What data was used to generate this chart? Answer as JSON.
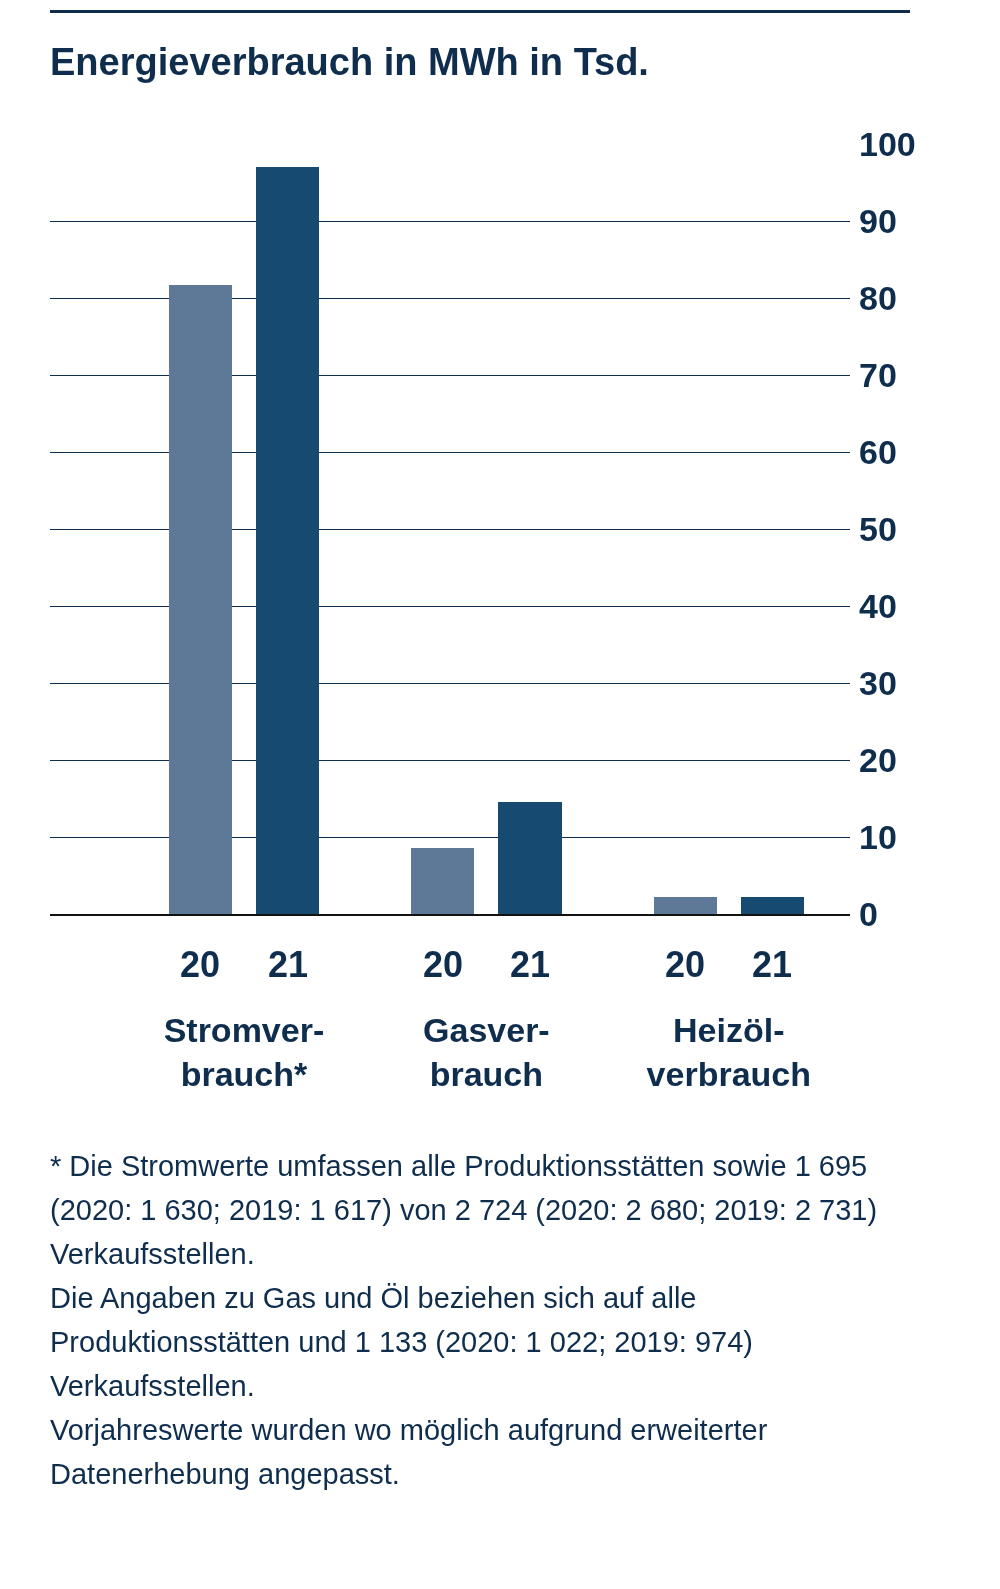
{
  "chart_data": {
    "type": "bar",
    "title": "Energieverbrauch in MWh in Tsd.",
    "categories": [
      "Stromver-\nbrauch*",
      "Gasver-\nbrauch",
      "Heizöl-\nverbrauch"
    ],
    "series": [
      {
        "name": "20",
        "color": "#5e7898",
        "values": [
          81.7,
          8.6,
          2.2
        ]
      },
      {
        "name": "21",
        "color": "#174a70",
        "values": [
          97,
          14.6,
          2.2
        ]
      }
    ],
    "ylim": [
      0,
      100
    ],
    "yticks": [
      0,
      10,
      20,
      30,
      40,
      50,
      60,
      70,
      80,
      90,
      100
    ],
    "grid": "y",
    "legend": false,
    "annotations": [
      "* Die Stromwerte umfassen alle Produktionsstätten sowie 1 695 (2020: 1 630; 2019: 1 617) von 2 724 (2020: 2 680; 2019: 2 731) Verkaufsstellen.",
      "Die Angaben zu Gas und Öl beziehen sich auf alle Produktionsstätten und 1 133 (2020: 1 022; 2019: 974) Verkaufsstellen.",
      "Vorjahreswerte wurden wo möglich aufgrund erweiterter Datenerhebung angepasst."
    ]
  }
}
